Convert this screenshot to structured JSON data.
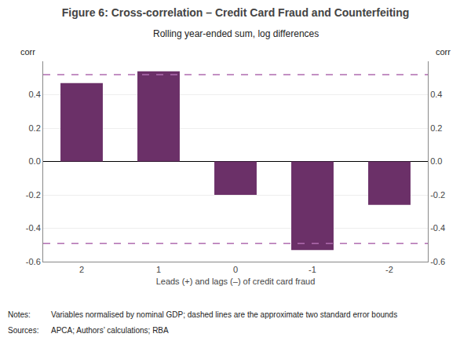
{
  "chart_data": {
    "type": "bar",
    "title": "Figure 6: Cross-correlation – Credit Card Fraud and Counterfeiting",
    "subtitle": "Rolling year-ended sum, log differences",
    "x_label": "Leads (+) and lags (–) of credit card fraud",
    "y_label": "corr",
    "y2_label": "corr",
    "categories": [
      "2",
      "1",
      "0",
      "-1",
      "-2"
    ],
    "values": [
      0.47,
      0.54,
      -0.2,
      -0.53,
      -0.26
    ],
    "color": "#6B3068",
    "reference_lines": [
      {
        "value": 0.52,
        "color": "#B06CB0",
        "line_style": "dashed"
      },
      {
        "value": -0.49,
        "color": "#B06CB0",
        "line_style": "dashed"
      }
    ],
    "ylim": [
      -0.6,
      0.6
    ],
    "yticks": [
      -0.6,
      -0.4,
      -0.2,
      {
        "value": 0,
        "label": "0.0"
      },
      0.2,
      0.4
    ],
    "y2lim": [
      -0.6,
      0.6
    ],
    "y2ticks": [
      -0.6,
      -0.4,
      -0.2,
      {
        "value": 0,
        "label": "0.0"
      },
      0.2,
      0.4
    ],
    "grid": true,
    "notes": [
      {
        "label": "Notes:",
        "text": "Variables normalised by nominal GDP; dashed lines are the approximate two standard error bounds"
      },
      {
        "label": "Sources:",
        "text": "APCA; Authors’ calculations; RBA"
      }
    ]
  }
}
